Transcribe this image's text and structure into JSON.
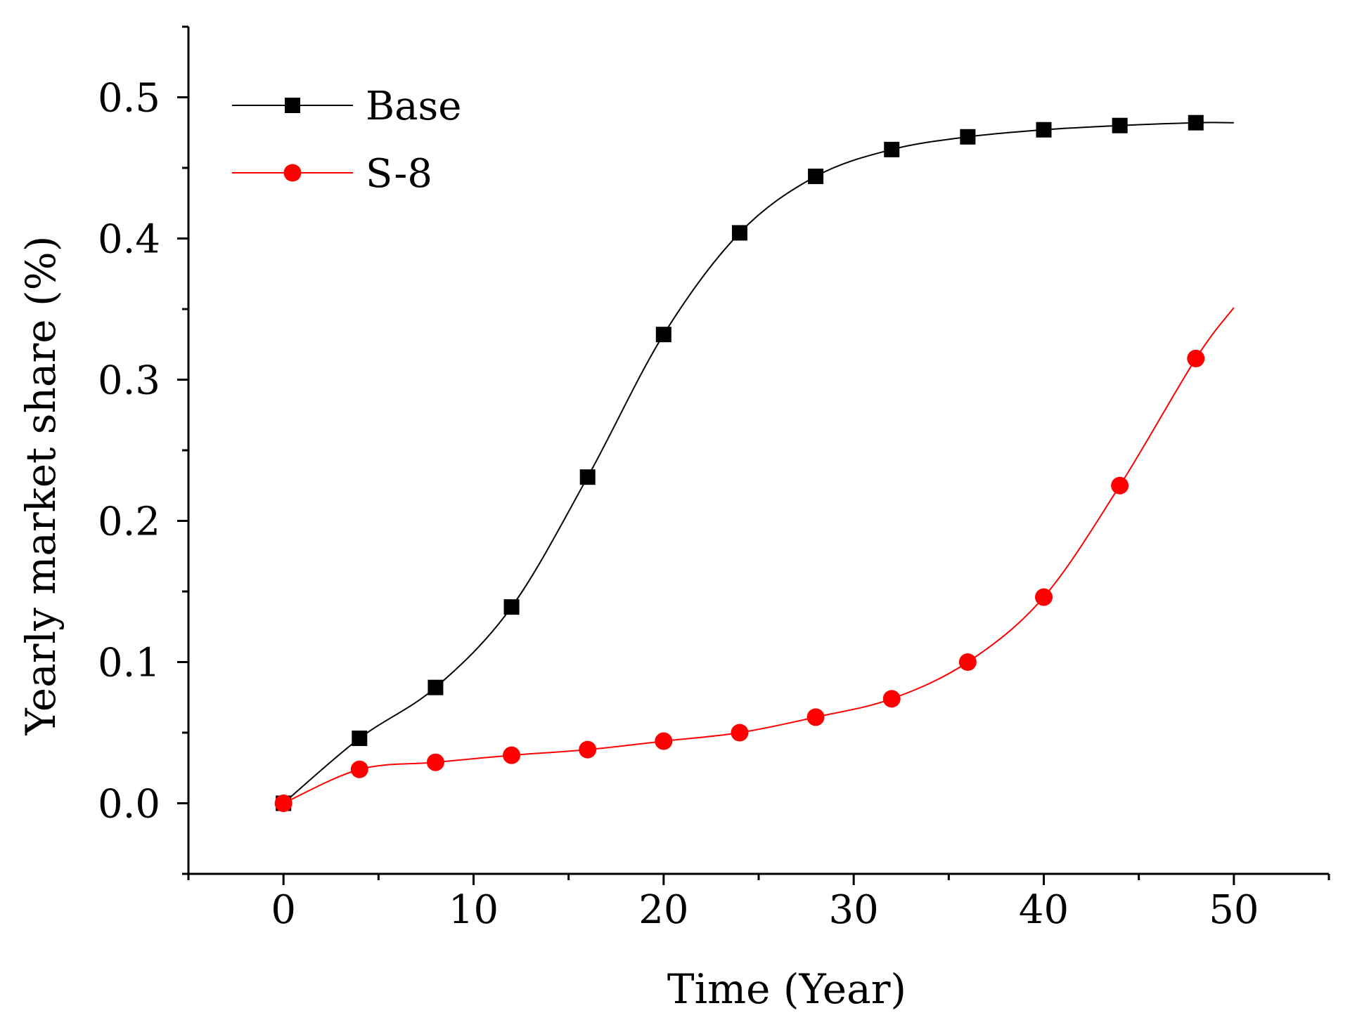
{
  "chart_data": {
    "type": "line",
    "title": "",
    "xlabel": "Time (Year)",
    "ylabel": "Yearly market share (%)",
    "xlim": [
      -5,
      55
    ],
    "ylim": [
      -0.05,
      0.55
    ],
    "x_ticks": [
      0,
      10,
      20,
      30,
      40,
      50
    ],
    "x_tick_labels": [
      "0",
      "10",
      "20",
      "30",
      "40",
      "50"
    ],
    "y_ticks": [
      0.0,
      0.1,
      0.2,
      0.3,
      0.4,
      0.5
    ],
    "y_tick_labels": [
      "0.0",
      "0.1",
      "0.2",
      "0.3",
      "0.4",
      "0.5"
    ],
    "grid": false,
    "legend_position": "top-left",
    "series": [
      {
        "name": "Base",
        "color": "#000000",
        "marker": "square",
        "x": [
          0,
          4,
          8,
          12,
          16,
          20,
          24,
          28,
          32,
          36,
          40,
          44,
          48
        ],
        "values": [
          0.0,
          0.046,
          0.082,
          0.139,
          0.231,
          0.332,
          0.404,
          0.444,
          0.463,
          0.472,
          0.477,
          0.48,
          0.482
        ],
        "curve_end": [
          50,
          0.482
        ]
      },
      {
        "name": "S-8",
        "color": "#ff0000",
        "marker": "circle",
        "x": [
          0,
          4,
          8,
          12,
          16,
          20,
          24,
          28,
          32,
          36,
          40,
          44,
          48
        ],
        "values": [
          0.0,
          0.024,
          0.029,
          0.034,
          0.038,
          0.044,
          0.05,
          0.061,
          0.074,
          0.1,
          0.146,
          0.225,
          0.315
        ],
        "curve_end": [
          50,
          0.351
        ]
      }
    ]
  }
}
